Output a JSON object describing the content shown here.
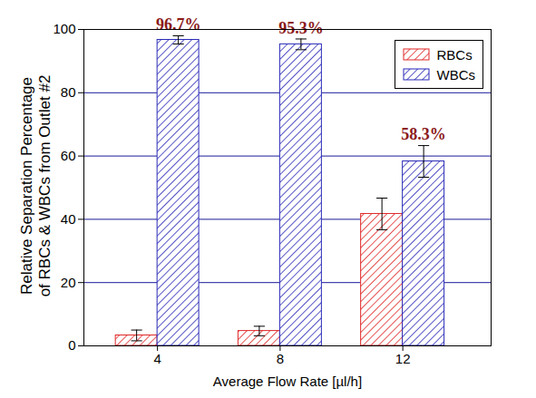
{
  "chart_data": {
    "type": "bar",
    "x_label": "Average Flow Rate [µl/h]",
    "y_label": "Relative Separation Percentage\nof RBCs & WBCs from Outlet #2",
    "categories": [
      4,
      8,
      12
    ],
    "series": [
      {
        "name": "RBCs",
        "color": "#e02828",
        "values": [
          3.3,
          4.7,
          41.7
        ],
        "errors": [
          1.7,
          1.5,
          5.0
        ]
      },
      {
        "name": "WBCs",
        "color": "#2a2ab8",
        "values": [
          96.7,
          95.3,
          58.3
        ],
        "errors": [
          1.3,
          1.7,
          5.0
        ],
        "data_labels": true,
        "value_labels": [
          "96.7%",
          "95.3%",
          "58.3%"
        ]
      }
    ],
    "ylim": [
      0,
      100
    ],
    "yticks": [
      0,
      20,
      40,
      60,
      80,
      100
    ],
    "grid": true,
    "legend": "top-right"
  }
}
